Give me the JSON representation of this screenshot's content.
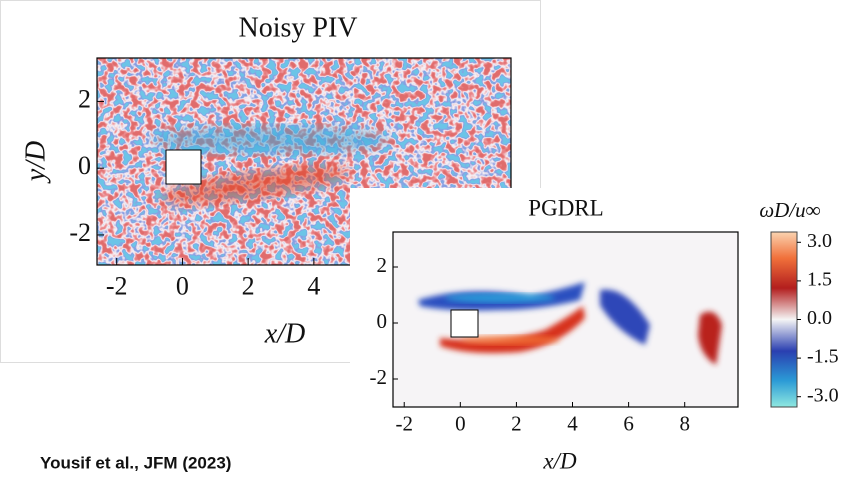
{
  "panels": [
    {
      "title": "Noisy PIV",
      "xlabel": "x/D",
      "ylabel": "y/D",
      "xlim": [
        -2.6,
        10
      ],
      "ylim": [
        -2.9,
        3.3
      ],
      "xticks": [
        -2,
        0,
        2,
        4
      ],
      "yticks": [
        -2,
        0,
        2
      ]
    },
    {
      "title": "PGDRL",
      "xlabel": "x/D",
      "xlim": [
        -2.4,
        9.9
      ],
      "ylim": [
        -3,
        3.25
      ],
      "xticks": [
        -2,
        0,
        2,
        4,
        6,
        8
      ],
      "yticks": [
        -2,
        0,
        2
      ]
    }
  ],
  "colorbar": {
    "label": "ωD/u∞",
    "lim": [
      -3.4,
      3.4
    ],
    "ticks": [
      {
        "value": 3,
        "label": "3.0"
      },
      {
        "value": 1.5,
        "label": "1.5"
      },
      {
        "value": 0,
        "label": "0.0"
      },
      {
        "value": -1.5,
        "label": "-1.5"
      },
      {
        "value": -3,
        "label": "-3.0"
      }
    ]
  },
  "citation": "Yousif et al., JFM (2023)"
}
